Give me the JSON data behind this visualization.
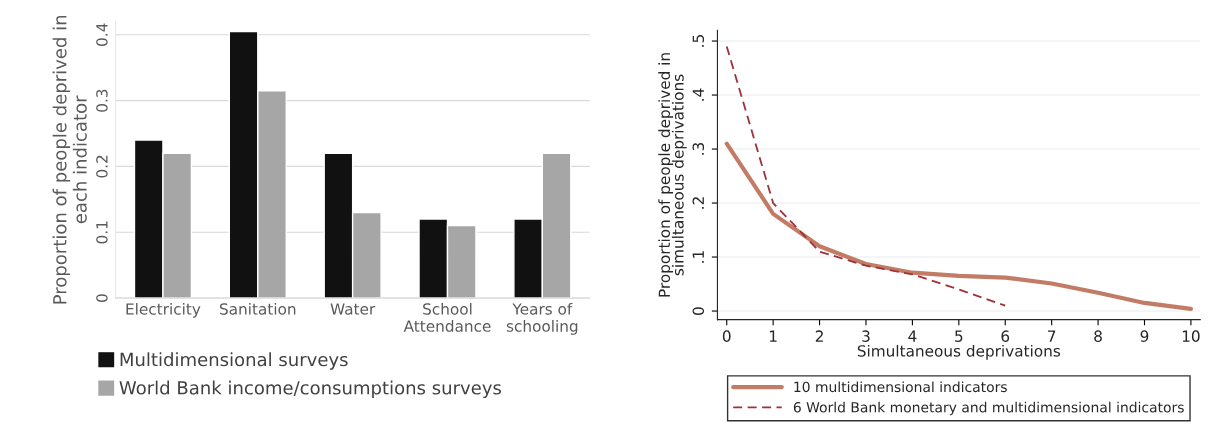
{
  "chart_data": [
    {
      "type": "bar",
      "ylabel": "Proportion of people deprived in each indicator",
      "categories": [
        "Electricity",
        "Sanitation",
        "Water",
        "School\nAttendance",
        "Years of\nschooling"
      ],
      "series": [
        {
          "name": "Multidimensional surveys",
          "color": "#111111",
          "values": [
            0.24,
            0.405,
            0.22,
            0.12,
            0.12
          ]
        },
        {
          "name": "World Bank income/consumptions surveys",
          "color": "#a6a6a6",
          "values": [
            0.22,
            0.315,
            0.13,
            0.11,
            0.22
          ]
        }
      ],
      "ylim": [
        0,
        0.42
      ],
      "yticks": [
        0,
        0.1,
        0.2,
        0.3,
        0.4
      ],
      "grid": "y",
      "legend": "bottom left"
    },
    {
      "type": "line",
      "xlabel": "Simultaneous deprivations",
      "ylabel": "Proportion of people deprived in\nsimultaneous deprivations",
      "series": [
        {
          "name": "10 multidimensional indicators",
          "color": "#c27c66",
          "line_style": "solid",
          "x": [
            0,
            1,
            2,
            3,
            4,
            5,
            6,
            7,
            8,
            9,
            10
          ],
          "values": [
            0.31,
            0.18,
            0.12,
            0.087,
            0.071,
            0.065,
            0.062,
            0.051,
            0.034,
            0.015,
            0.004
          ]
        },
        {
          "name": "6 World Bank monetary and multidimensional indicators",
          "color": "#a0303a",
          "line_style": "dashed",
          "x": [
            0,
            1,
            2,
            3,
            4,
            5,
            6
          ],
          "values": [
            0.49,
            0.2,
            0.11,
            0.084,
            0.068,
            0.04,
            0.01
          ]
        }
      ],
      "xlim": [
        -0.2,
        10.2
      ],
      "xticks": [
        0,
        1,
        2,
        3,
        4,
        5,
        6,
        7,
        8,
        9,
        10
      ],
      "ylim": [
        -0.016,
        0.52
      ],
      "yticks": [
        {
          "value": 0,
          "label": "0"
        },
        {
          "value": 0.1,
          "label": ".1"
        },
        {
          "value": 0.2,
          "label": ".2"
        },
        {
          "value": 0.3,
          "label": ".3"
        },
        {
          "value": 0.4,
          "label": ".4"
        },
        {
          "value": 0.5,
          "label": ".5"
        }
      ],
      "grid": "y",
      "legend": "bottom"
    }
  ]
}
